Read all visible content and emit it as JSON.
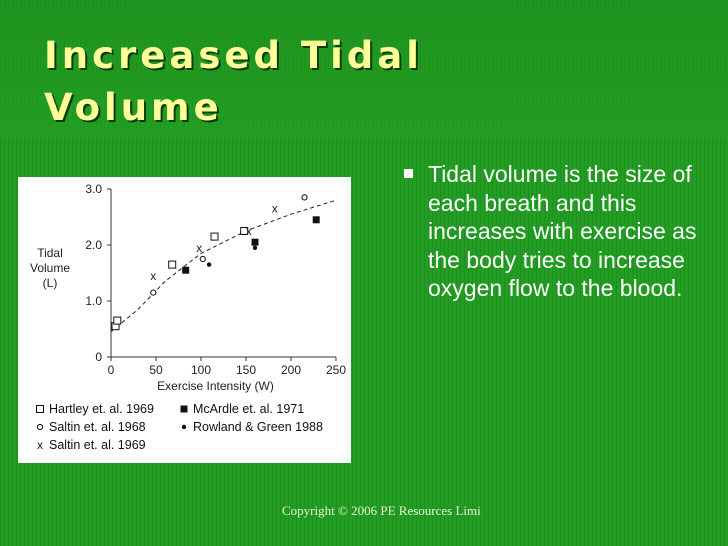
{
  "slide": {
    "title": "Increased Tidal Volume",
    "bullet": "Tidal volume is the size of each breath and this increases with exercise as the body tries to increase oxygen flow to the blood.",
    "footer": "Copyright © 2006 PE Resources Limi"
  },
  "colors": {
    "background": "#1f9a1f",
    "title": "#ffff99",
    "bullet_text": "#ffffff"
  },
  "chart_data": {
    "type": "scatter",
    "title": "",
    "xlabel": "Exercise Intensity (W)",
    "ylabel_lines": [
      "Tidal",
      "Volume",
      "(L)"
    ],
    "xlim": [
      0,
      250
    ],
    "ylim": [
      0,
      3.0
    ],
    "x_ticks": [
      0,
      50,
      100,
      150,
      200,
      250
    ],
    "x_tick_labels": [
      "0",
      "50",
      "100",
      "150",
      "200",
      "250"
    ],
    "y_ticks": [
      0,
      1.0,
      2.0,
      3.0
    ],
    "y_tick_labels": [
      "0",
      "1.0",
      "2.0",
      "3.0"
    ],
    "series": [
      {
        "name": "Hartley et. al. 1969",
        "marker": "open-square",
        "points": [
          [
            5,
            0.55
          ],
          [
            7,
            0.65
          ],
          [
            68,
            1.65
          ],
          [
            115,
            2.15
          ],
          [
            148,
            2.25
          ]
        ]
      },
      {
        "name": "McArdle et. al. 1971",
        "marker": "filled-square",
        "points": [
          [
            83,
            1.55
          ],
          [
            160,
            2.05
          ],
          [
            228,
            2.45
          ]
        ]
      },
      {
        "name": "Saltin et. al. 1968",
        "marker": "open-circle",
        "points": [
          [
            47,
            1.15
          ],
          [
            102,
            1.75
          ],
          [
            215,
            2.85
          ]
        ]
      },
      {
        "name": "Rowland & Green 1988",
        "marker": "filled-dot",
        "points": [
          [
            109,
            1.65
          ],
          [
            160,
            1.95
          ]
        ]
      },
      {
        "name": "Saltin et. al. 1969",
        "marker": "x",
        "points": [
          [
            47,
            1.45
          ],
          [
            98,
            1.95
          ],
          [
            153,
            2.25
          ],
          [
            182,
            2.65
          ]
        ]
      }
    ],
    "trend_line": [
      [
        0,
        0.45
      ],
      [
        30,
        0.85
      ],
      [
        60,
        1.35
      ],
      [
        100,
        1.85
      ],
      [
        150,
        2.25
      ],
      [
        200,
        2.55
      ],
      [
        250,
        2.8
      ]
    ],
    "legend": {
      "columns": [
        [
          "Hartley et. al. 1969",
          "Saltin et. al. 1968",
          "Saltin et. al. 1969"
        ],
        [
          "McArdle et. al. 1971",
          "Rowland & Green 1988"
        ]
      ],
      "placement": "bottom"
    }
  }
}
